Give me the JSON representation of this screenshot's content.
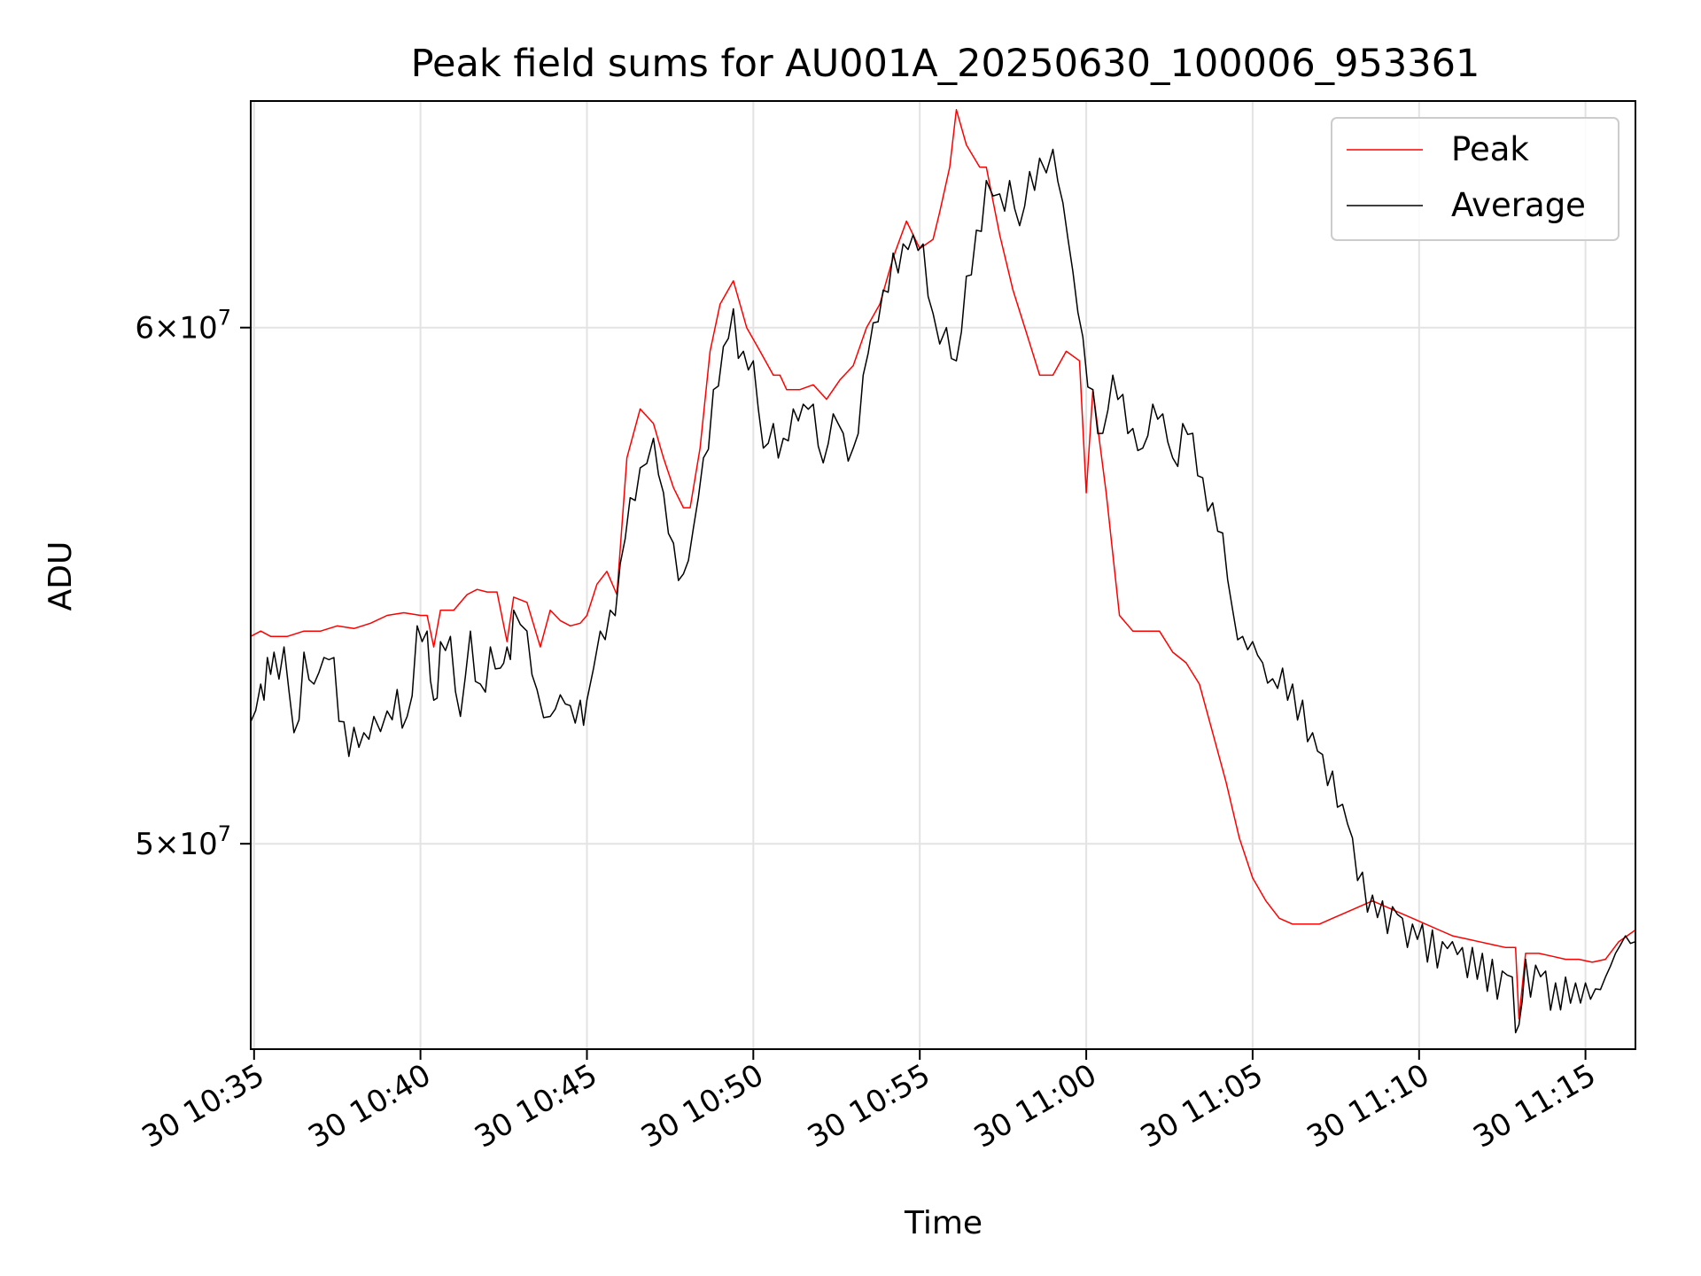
{
  "chart_data": {
    "type": "line",
    "title": "Peak field sums for AU001A_20250630_100006_953361",
    "xlabel": "Time",
    "ylabel": "ADU",
    "x_unit": "minutes",
    "xlim": [
      -0.1,
      41.5
    ],
    "ylim": [
      46500000.0,
      65000000.0
    ],
    "y_scale": "log",
    "grid": true,
    "legend_position": "top-right",
    "x_ticks": [
      {
        "value": 0,
        "label": "30 10:35"
      },
      {
        "value": 5,
        "label": "30 10:40"
      },
      {
        "value": 10,
        "label": "30 10:45"
      },
      {
        "value": 15,
        "label": "30 10:50"
      },
      {
        "value": 20,
        "label": "30 10:55"
      },
      {
        "value": 25,
        "label": "30 11:00"
      },
      {
        "value": 30,
        "label": "30 11:05"
      },
      {
        "value": 35,
        "label": "30 11:10"
      },
      {
        "value": 40,
        "label": "30 11:15"
      }
    ],
    "y_ticks": [
      {
        "value": 50000000,
        "base": "5",
        "exp": "7"
      },
      {
        "value": 60000000,
        "base": "6",
        "exp": "7"
      }
    ],
    "y_tick_times": "×",
    "y_tick_ten": "10",
    "series": [
      {
        "name": "Peak",
        "color": "#ff0000",
        "points": [
          [
            -0.1,
            53.8
          ],
          [
            0.2,
            53.9
          ],
          [
            0.5,
            53.8
          ],
          [
            1.0,
            53.8
          ],
          [
            1.5,
            53.9
          ],
          [
            2.0,
            53.9
          ],
          [
            2.5,
            54.0
          ],
          [
            3.0,
            53.95
          ],
          [
            3.5,
            54.05
          ],
          [
            4.0,
            54.2
          ],
          [
            4.5,
            54.25
          ],
          [
            5.0,
            54.2
          ],
          [
            5.2,
            54.2
          ],
          [
            5.4,
            53.6
          ],
          [
            5.6,
            54.3
          ],
          [
            6.0,
            54.3
          ],
          [
            6.4,
            54.6
          ],
          [
            6.7,
            54.7
          ],
          [
            7.0,
            54.65
          ],
          [
            7.3,
            54.65
          ],
          [
            7.6,
            53.7
          ],
          [
            7.8,
            54.55
          ],
          [
            8.2,
            54.45
          ],
          [
            8.6,
            53.6
          ],
          [
            8.9,
            54.3
          ],
          [
            9.2,
            54.1
          ],
          [
            9.5,
            54.0
          ],
          [
            9.8,
            54.05
          ],
          [
            10.0,
            54.2
          ],
          [
            10.3,
            54.8
          ],
          [
            10.6,
            55.05
          ],
          [
            10.9,
            54.6
          ],
          [
            11.2,
            57.3
          ],
          [
            11.6,
            58.3
          ],
          [
            12.0,
            58.0
          ],
          [
            12.3,
            57.3
          ],
          [
            12.6,
            56.7
          ],
          [
            12.9,
            56.3
          ],
          [
            13.1,
            56.3
          ],
          [
            13.4,
            57.5
          ],
          [
            13.7,
            59.5
          ],
          [
            14.0,
            60.5
          ],
          [
            14.4,
            61.0
          ],
          [
            14.8,
            60.0
          ],
          [
            15.2,
            59.5
          ],
          [
            15.6,
            59.0
          ],
          [
            15.8,
            59.0
          ],
          [
            16.0,
            58.7
          ],
          [
            16.4,
            58.7
          ],
          [
            16.8,
            58.8
          ],
          [
            17.2,
            58.5
          ],
          [
            17.6,
            58.9
          ],
          [
            18.0,
            59.2
          ],
          [
            18.4,
            60.0
          ],
          [
            18.8,
            60.5
          ],
          [
            19.2,
            61.5
          ],
          [
            19.6,
            62.3
          ],
          [
            20.0,
            61.7
          ],
          [
            20.4,
            61.9
          ],
          [
            20.6,
            62.5
          ],
          [
            20.9,
            63.5
          ],
          [
            21.1,
            64.8
          ],
          [
            21.4,
            64.0
          ],
          [
            21.8,
            63.5
          ],
          [
            22.0,
            63.5
          ],
          [
            22.4,
            62.0
          ],
          [
            22.8,
            60.8
          ],
          [
            23.2,
            59.9
          ],
          [
            23.6,
            59.0
          ],
          [
            24.0,
            59.0
          ],
          [
            24.4,
            59.5
          ],
          [
            24.8,
            59.3
          ],
          [
            25.0,
            56.6
          ],
          [
            25.2,
            58.7
          ],
          [
            25.6,
            56.6
          ],
          [
            26.0,
            54.2
          ],
          [
            26.4,
            53.9
          ],
          [
            26.8,
            53.9
          ],
          [
            27.2,
            53.9
          ],
          [
            27.6,
            53.5
          ],
          [
            28.0,
            53.3
          ],
          [
            28.4,
            52.9
          ],
          [
            28.8,
            52.0
          ],
          [
            29.2,
            51.1
          ],
          [
            29.6,
            50.1
          ],
          [
            30.0,
            49.4
          ],
          [
            30.4,
            49.0
          ],
          [
            30.8,
            48.7
          ],
          [
            31.2,
            48.6
          ],
          [
            31.6,
            48.6
          ],
          [
            32.0,
            48.6
          ],
          [
            32.4,
            48.7
          ],
          [
            32.8,
            48.8
          ],
          [
            33.2,
            48.9
          ],
          [
            33.6,
            49.0
          ],
          [
            34.0,
            48.9
          ],
          [
            34.4,
            48.8
          ],
          [
            34.8,
            48.7
          ],
          [
            35.2,
            48.6
          ],
          [
            35.6,
            48.5
          ],
          [
            36.0,
            48.4
          ],
          [
            36.4,
            48.35
          ],
          [
            36.8,
            48.3
          ],
          [
            37.2,
            48.25
          ],
          [
            37.6,
            48.2
          ],
          [
            37.9,
            48.2
          ],
          [
            38.0,
            47.0
          ],
          [
            38.2,
            48.1
          ],
          [
            38.6,
            48.1
          ],
          [
            39.0,
            48.05
          ],
          [
            39.4,
            48.0
          ],
          [
            39.8,
            48.0
          ],
          [
            40.2,
            47.95
          ],
          [
            40.6,
            48.0
          ],
          [
            41.0,
            48.3
          ],
          [
            41.5,
            48.5
          ]
        ]
      },
      {
        "name": "Average",
        "color": "#000000",
        "points": [
          [
            -0.1,
            52.2
          ],
          [
            0.2,
            52.9
          ],
          [
            0.4,
            53.4
          ],
          [
            0.6,
            53.5
          ],
          [
            0.9,
            53.6
          ],
          [
            1.2,
            52.0
          ],
          [
            1.5,
            53.5
          ],
          [
            1.8,
            52.9
          ],
          [
            2.1,
            53.4
          ],
          [
            2.4,
            53.4
          ],
          [
            2.7,
            52.2
          ],
          [
            3.0,
            52.1
          ],
          [
            3.3,
            52.0
          ],
          [
            3.6,
            52.3
          ],
          [
            4.0,
            52.4
          ],
          [
            4.3,
            52.8
          ],
          [
            4.6,
            52.3
          ],
          [
            4.9,
            54.0
          ],
          [
            5.2,
            53.9
          ],
          [
            5.4,
            52.6
          ],
          [
            5.6,
            53.7
          ],
          [
            5.9,
            53.8
          ],
          [
            6.2,
            52.3
          ],
          [
            6.5,
            53.9
          ],
          [
            6.8,
            52.9
          ],
          [
            7.1,
            53.6
          ],
          [
            7.4,
            53.2
          ],
          [
            7.6,
            53.6
          ],
          [
            7.8,
            54.3
          ],
          [
            8.2,
            53.9
          ],
          [
            8.5,
            52.8
          ],
          [
            8.9,
            52.3
          ],
          [
            9.2,
            52.7
          ],
          [
            9.5,
            52.5
          ],
          [
            9.8,
            52.6
          ],
          [
            10.0,
            52.6
          ],
          [
            10.4,
            53.9
          ],
          [
            10.7,
            54.3
          ],
          [
            11.0,
            55.2
          ],
          [
            11.3,
            56.5
          ],
          [
            11.6,
            57.1
          ],
          [
            12.0,
            57.7
          ],
          [
            12.3,
            56.6
          ],
          [
            12.6,
            55.6
          ],
          [
            12.9,
            55.0
          ],
          [
            13.2,
            55.9
          ],
          [
            13.5,
            57.3
          ],
          [
            13.8,
            58.7
          ],
          [
            14.1,
            59.6
          ],
          [
            14.4,
            60.4
          ],
          [
            14.7,
            59.5
          ],
          [
            15.0,
            59.3
          ],
          [
            15.3,
            57.5
          ],
          [
            15.6,
            58.0
          ],
          [
            15.9,
            57.7
          ],
          [
            16.2,
            58.3
          ],
          [
            16.5,
            58.4
          ],
          [
            16.8,
            58.4
          ],
          [
            17.1,
            57.2
          ],
          [
            17.4,
            58.2
          ],
          [
            17.7,
            57.8
          ],
          [
            18.0,
            57.5
          ],
          [
            18.3,
            59.0
          ],
          [
            18.6,
            60.1
          ],
          [
            18.9,
            60.8
          ],
          [
            19.2,
            61.6
          ],
          [
            19.5,
            61.8
          ],
          [
            19.8,
            62.0
          ],
          [
            20.1,
            61.8
          ],
          [
            20.4,
            60.3
          ],
          [
            20.8,
            60.0
          ],
          [
            21.1,
            59.3
          ],
          [
            21.4,
            61.1
          ],
          [
            21.7,
            62.1
          ],
          [
            22.0,
            63.2
          ],
          [
            22.4,
            62.9
          ],
          [
            22.7,
            63.2
          ],
          [
            23.0,
            62.2
          ],
          [
            23.3,
            63.4
          ],
          [
            23.6,
            63.7
          ],
          [
            24.0,
            63.9
          ],
          [
            24.3,
            62.7
          ],
          [
            24.6,
            61.2
          ],
          [
            24.9,
            59.8
          ],
          [
            25.2,
            58.7
          ],
          [
            25.5,
            57.8
          ],
          [
            25.8,
            59.0
          ],
          [
            26.1,
            58.6
          ],
          [
            26.4,
            57.9
          ],
          [
            26.7,
            57.5
          ],
          [
            27.0,
            58.4
          ],
          [
            27.3,
            58.2
          ],
          [
            27.6,
            57.3
          ],
          [
            27.9,
            58.0
          ],
          [
            28.2,
            57.8
          ],
          [
            28.5,
            56.9
          ],
          [
            28.8,
            56.4
          ],
          [
            29.1,
            55.8
          ],
          [
            29.4,
            54.3
          ],
          [
            29.7,
            53.8
          ],
          [
            30.0,
            53.7
          ],
          [
            30.3,
            53.3
          ],
          [
            30.6,
            53.0
          ],
          [
            30.9,
            53.2
          ],
          [
            31.2,
            52.9
          ],
          [
            31.5,
            52.6
          ],
          [
            31.8,
            52.0
          ],
          [
            32.1,
            51.6
          ],
          [
            32.4,
            51.3
          ],
          [
            32.7,
            50.7
          ],
          [
            33.0,
            50.1
          ],
          [
            33.3,
            49.5
          ],
          [
            33.6,
            49.1
          ],
          [
            33.9,
            49.0
          ],
          [
            34.2,
            48.9
          ],
          [
            34.5,
            48.7
          ],
          [
            34.8,
            48.6
          ],
          [
            35.1,
            48.6
          ],
          [
            35.4,
            48.5
          ],
          [
            35.7,
            48.3
          ],
          [
            36.0,
            48.3
          ],
          [
            36.3,
            48.2
          ],
          [
            36.6,
            48.2
          ],
          [
            36.9,
            48.1
          ],
          [
            37.2,
            48.0
          ],
          [
            37.5,
            47.8
          ],
          [
            37.8,
            47.7
          ],
          [
            38.0,
            46.9
          ],
          [
            38.2,
            48.0
          ],
          [
            38.5,
            47.9
          ],
          [
            38.8,
            47.8
          ],
          [
            39.1,
            47.6
          ],
          [
            39.4,
            47.7
          ],
          [
            39.7,
            47.6
          ],
          [
            40.0,
            47.6
          ],
          [
            40.3,
            47.5
          ],
          [
            40.6,
            47.7
          ],
          [
            40.9,
            48.1
          ],
          [
            41.2,
            48.4
          ],
          [
            41.5,
            48.3
          ]
        ],
        "noise": true
      }
    ]
  }
}
